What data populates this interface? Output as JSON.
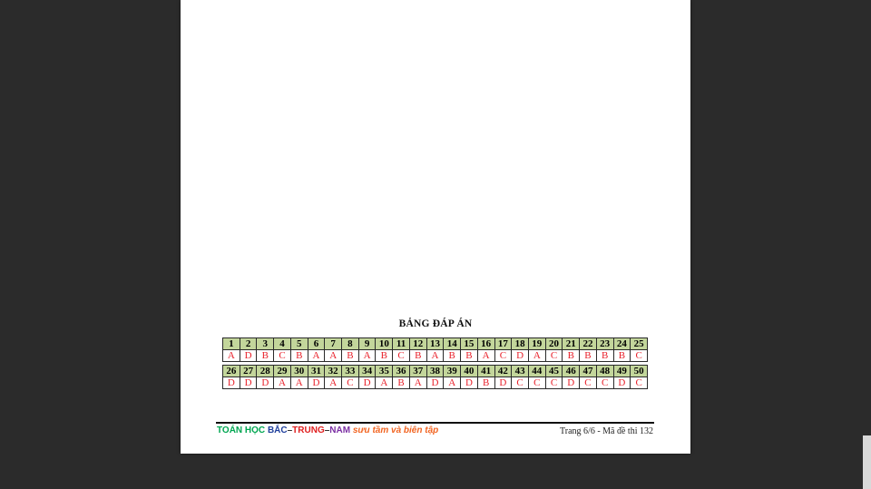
{
  "answer_key": {
    "title": "BẢNG ĐÁP ÁN",
    "rows": [
      {
        "numbers": [
          "1",
          "2",
          "3",
          "4",
          "5",
          "6",
          "7",
          "8",
          "9",
          "10",
          "11",
          "12",
          "13",
          "14",
          "15",
          "16",
          "17",
          "18",
          "19",
          "20",
          "21",
          "22",
          "23",
          "24",
          "25"
        ],
        "answers": [
          "A",
          "D",
          "B",
          "C",
          "B",
          "A",
          "A",
          "B",
          "A",
          "B",
          "C",
          "B",
          "A",
          "B",
          "B",
          "A",
          "C",
          "D",
          "A",
          "C",
          "B",
          "B",
          "B",
          "B",
          "C"
        ]
      },
      {
        "numbers": [
          "26",
          "27",
          "28",
          "29",
          "30",
          "31",
          "32",
          "33",
          "34",
          "35",
          "36",
          "37",
          "38",
          "39",
          "40",
          "41",
          "42",
          "43",
          "44",
          "45",
          "46",
          "47",
          "48",
          "49",
          "50"
        ],
        "answers": [
          "D",
          "D",
          "D",
          "A",
          "A",
          "D",
          "A",
          "C",
          "D",
          "A",
          "B",
          "A",
          "D",
          "A",
          "D",
          "B",
          "D",
          "C",
          "C",
          "C",
          "D",
          "C",
          "C",
          "D",
          "C"
        ]
      }
    ]
  },
  "footer": {
    "brand": {
      "part1": "TOÁN HỌC",
      "part2": "BẮC",
      "dash1": "–",
      "part3": "TRUNG",
      "dash2": "–",
      "part4": "NAM",
      "part5": "sưu tầm và biên tập"
    },
    "page_info": "Trang 6/6 - Mã đề thi 132"
  },
  "colors": {
    "header_cell_bg": "#c3d69b",
    "answer_text": "#e8202a",
    "viewer_bg": "#2b2b2b"
  }
}
